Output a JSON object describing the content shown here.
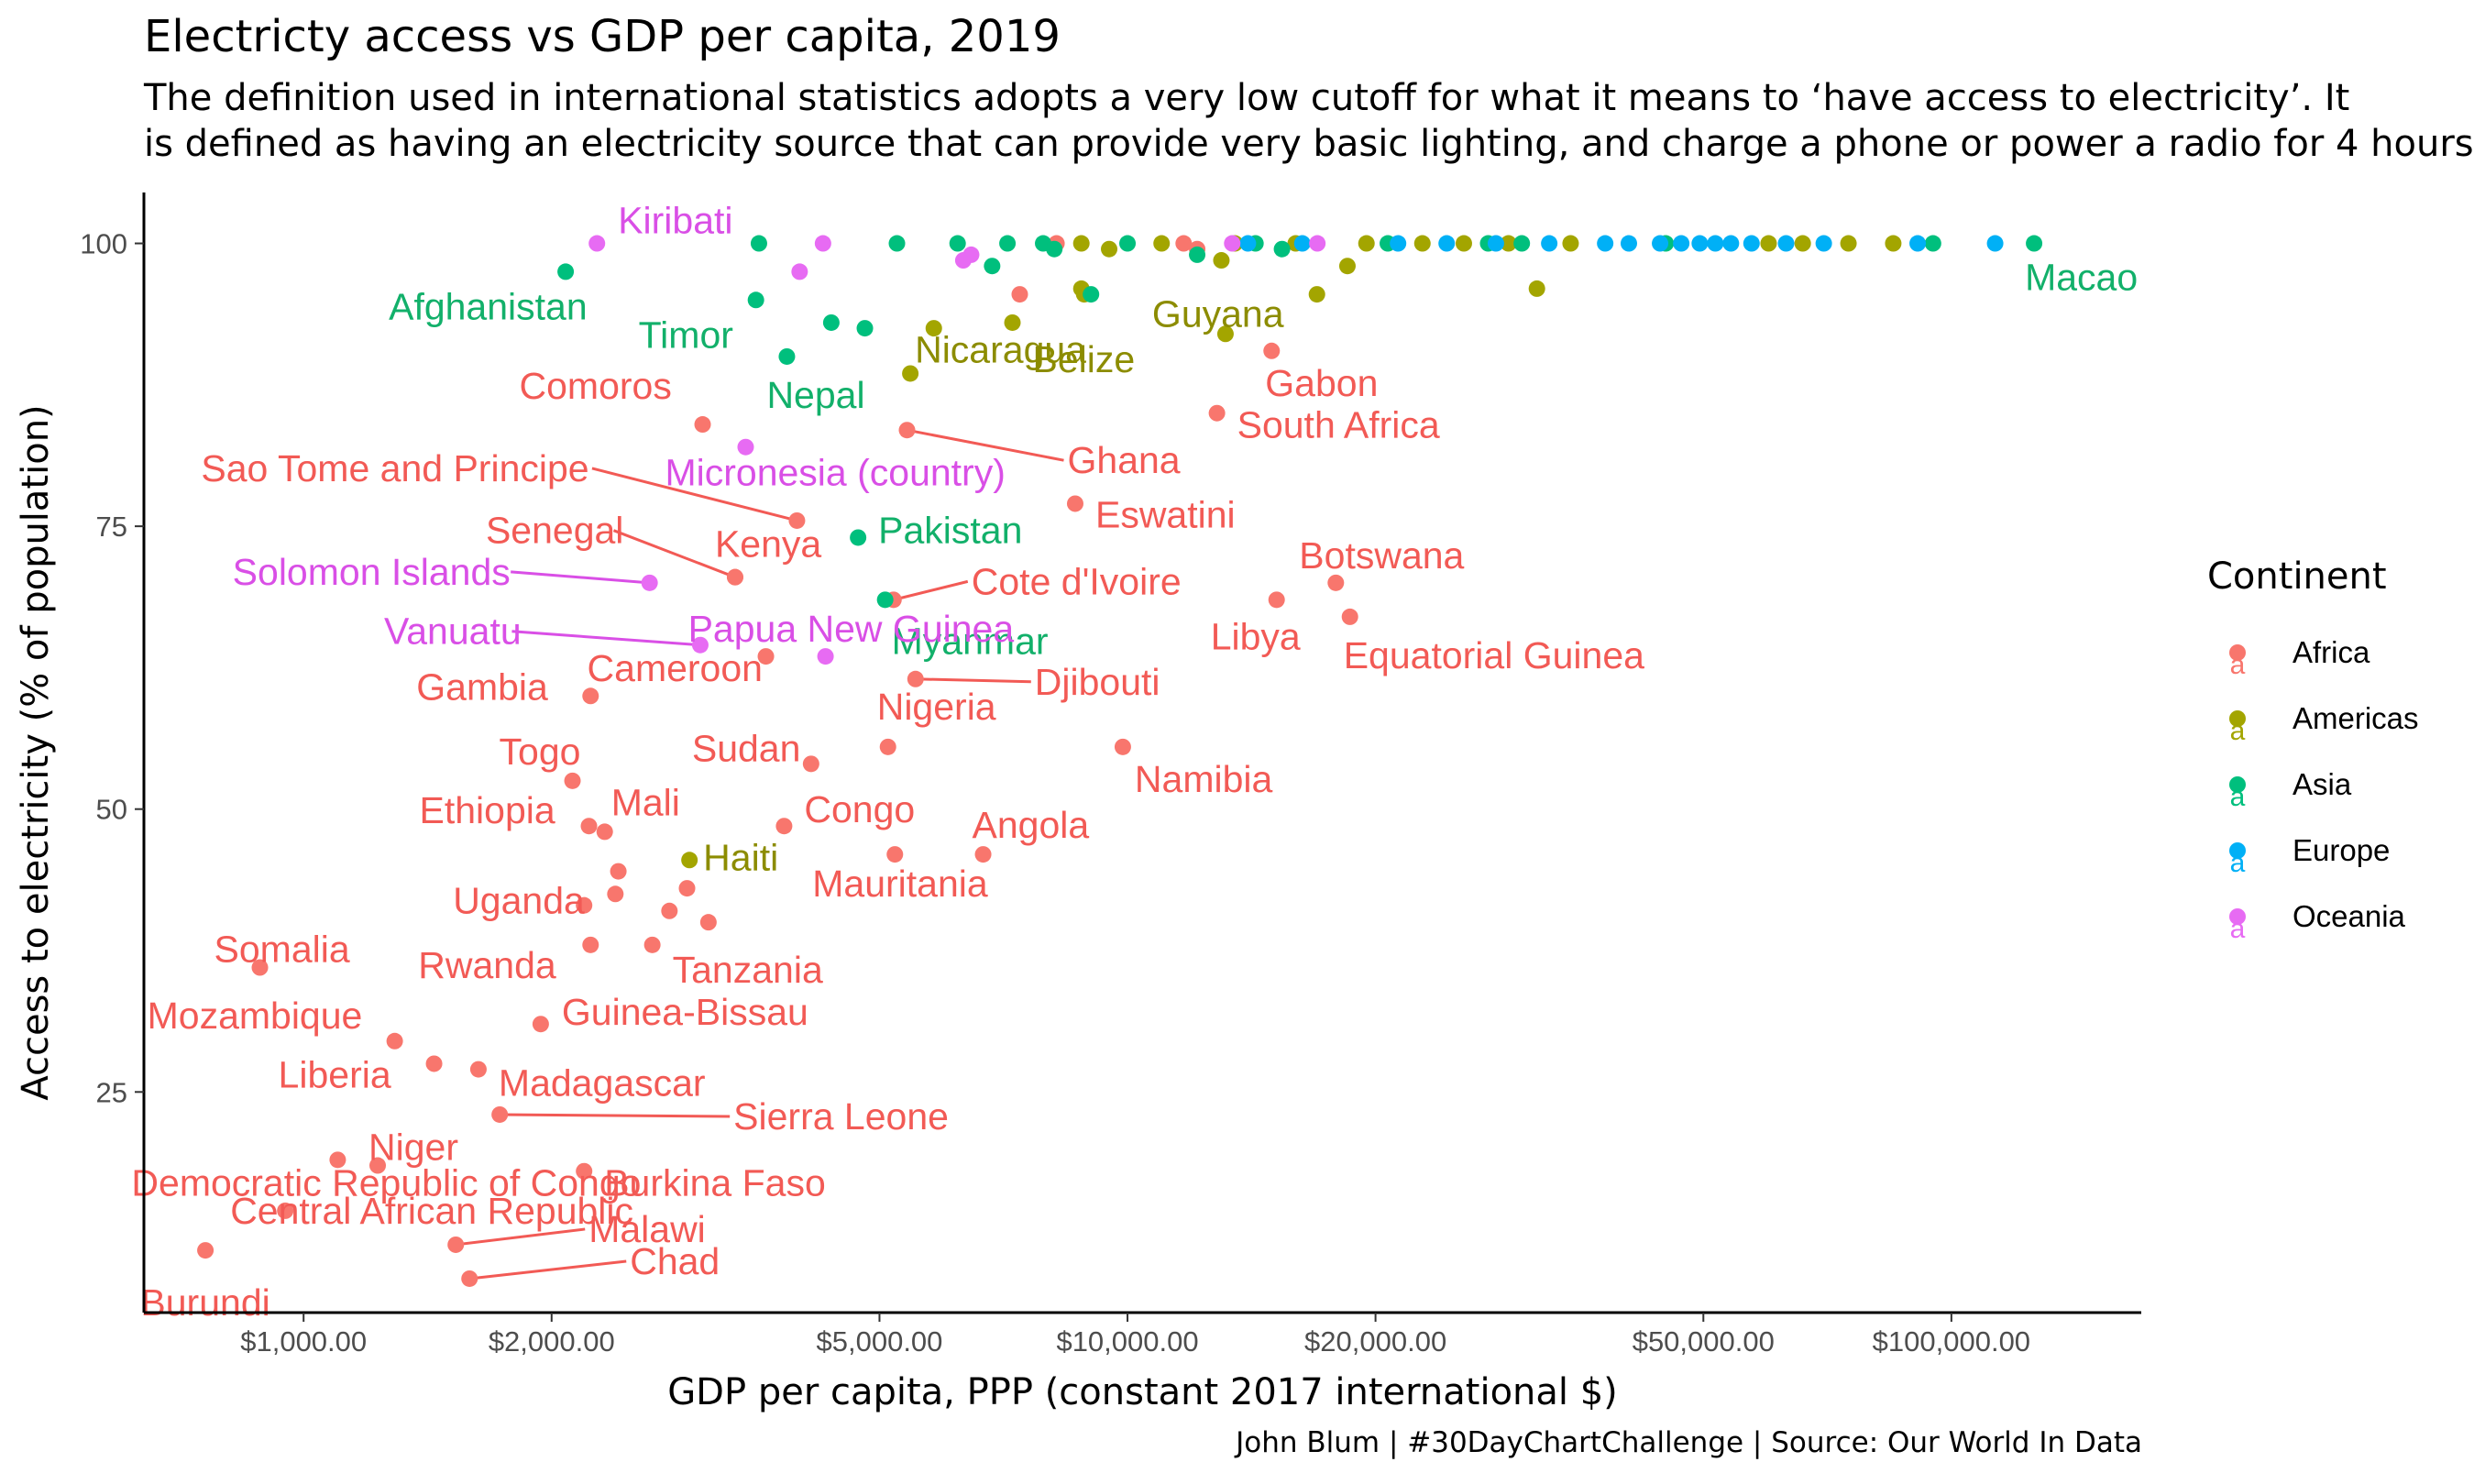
{
  "title": "Electricty access vs GDP per capita, 2019",
  "subtitle": [
    "The definition used in international statistics adopts a very low cutoff for what it means to  ‘have access to electricity’. It",
    "is defined as having an electricity source that can provide very basic lighting, and charge a phone or power a radio for 4 hours"
  ],
  "caption": "John Blum | #30DayChartChallenge | Source: Our World In Data",
  "colors": {
    "Africa": "#F8766D",
    "Americas": "#A3A500",
    "Asia": "#00BF7D",
    "Europe": "#00B0F6",
    "Oceania": "#E76BF3",
    "label_Africa": "#F25A55",
    "label_Americas": "#8C8C00",
    "label_Asia": "#12B06A",
    "label_Oceania": "#D94FE6"
  },
  "chart_data": {
    "type": "scatter",
    "title": "Electricty access vs GDP per capita, 2019",
    "xlabel": "GDP per capita, PPP (constant 2017 international $)",
    "ylabel": "Access to electricity (% of population)",
    "x_scale": "log10",
    "xlim": [
      640,
      170000
    ],
    "ylim": [
      5.5,
      104.5
    ],
    "x_ticks": [
      1000,
      2000,
      5000,
      10000,
      20000,
      50000,
      100000
    ],
    "x_tick_labels": [
      "$1,000.00",
      "$2,000.00",
      "$5,000.00",
      "$10,000.00",
      "$20,000.00",
      "$50,000.00",
      "$100,000.00"
    ],
    "y_ticks": [
      25,
      50,
      75,
      100
    ],
    "y_tick_labels": [
      "25",
      "50",
      "75",
      "100"
    ],
    "grid": false,
    "legend": {
      "title": "Continent",
      "position": "right",
      "glyph": "a",
      "entries": [
        "Africa",
        "Americas",
        "Asia",
        "Europe",
        "Oceania"
      ]
    },
    "labeled_points": [
      {
        "label": "Burundi",
        "continent": "Africa",
        "x": 760,
        "y": 11
      },
      {
        "label": "Somalia",
        "continent": "Africa",
        "x": 885,
        "y": 36
      },
      {
        "label": "Central African Republic",
        "continent": "Africa",
        "x": 950,
        "y": 14.5
      },
      {
        "label": "Democratic Republic of Congo",
        "continent": "Africa",
        "x": 1100,
        "y": 19
      },
      {
        "label": "Niger",
        "continent": "Africa",
        "x": 1230,
        "y": 18.5
      },
      {
        "label": "Mozambique",
        "continent": "Africa",
        "x": 1290,
        "y": 29.5
      },
      {
        "label": "Liberia",
        "continent": "Africa",
        "x": 1440,
        "y": 27.5
      },
      {
        "label": "Malawi",
        "continent": "Africa",
        "x": 1530,
        "y": 11.5
      },
      {
        "label": "Madagascar",
        "continent": "Africa",
        "x": 1630,
        "y": 27
      },
      {
        "label": "Chad",
        "continent": "Africa",
        "x": 1590,
        "y": 8.5
      },
      {
        "label": "Sierra Leone",
        "continent": "Africa",
        "x": 1730,
        "y": 23
      },
      {
        "label": "Guinea-Bissau",
        "continent": "Africa",
        "x": 1940,
        "y": 31
      },
      {
        "label": "Togo",
        "continent": "Africa",
        "x": 2120,
        "y": 52.5
      },
      {
        "label": "Burkina Faso",
        "continent": "Africa",
        "x": 2190,
        "y": 18
      },
      {
        "label": "Ethiopia",
        "continent": "Africa",
        "x": 2220,
        "y": 48.5
      },
      {
        "label": "Uganda",
        "continent": "Africa",
        "x": 2190,
        "y": 41.5
      },
      {
        "label": "Rwanda",
        "continent": "Africa",
        "x": 2230,
        "y": 38
      },
      {
        "label": "Gambia",
        "continent": "Africa",
        "x": 2230,
        "y": 60
      },
      {
        "label": "Mali",
        "continent": "Africa",
        "x": 2320,
        "y": 48
      },
      {
        "label": "Tanzania",
        "continent": "Africa",
        "x": 2650,
        "y": 38
      },
      {
        "label": "Cameroon",
        "continent": "Africa",
        "x": 3640,
        "y": 63.5
      },
      {
        "label": "Kenya",
        "continent": "Africa",
        "x": 3340,
        "y": 70.5
      },
      {
        "label": "Sao Tome and Principe",
        "continent": "Africa",
        "x": 3970,
        "y": 75.5
      },
      {
        "label": "Comoros",
        "continent": "Africa",
        "x": 3050,
        "y": 84
      },
      {
        "label": "Senegal",
        "continent": "Africa",
        "x": 3340,
        "y": 70.5
      },
      {
        "label": "Sudan",
        "continent": "Africa",
        "x": 4130,
        "y": 54
      },
      {
        "label": "Congo",
        "continent": "Africa",
        "x": 3830,
        "y": 48.5
      },
      {
        "label": "Mauritania",
        "continent": "Africa",
        "x": 5220,
        "y": 46
      },
      {
        "label": "Nigeria",
        "continent": "Africa",
        "x": 5120,
        "y": 55.5
      },
      {
        "label": "Cote d'Ivoire",
        "continent": "Africa",
        "x": 5200,
        "y": 68.5
      },
      {
        "label": "Ghana",
        "continent": "Africa",
        "x": 5400,
        "y": 83.5
      },
      {
        "label": "Djibouti",
        "continent": "Africa",
        "x": 5530,
        "y": 61.5
      },
      {
        "label": "Angola",
        "continent": "Africa",
        "x": 6680,
        "y": 46
      },
      {
        "label": "Eswatini",
        "continent": "Africa",
        "x": 8640,
        "y": 77
      },
      {
        "label": "Namibia",
        "continent": "Africa",
        "x": 9870,
        "y": 55.5
      },
      {
        "label": "South Africa",
        "continent": "Africa",
        "x": 12840,
        "y": 85
      },
      {
        "label": "Gabon",
        "continent": "Africa",
        "x": 14960,
        "y": 90.5
      },
      {
        "label": "Libya",
        "continent": "Africa",
        "x": 15170,
        "y": 68.5
      },
      {
        "label": "Botswana",
        "continent": "Africa",
        "x": 17900,
        "y": 70
      },
      {
        "label": "Equatorial Guinea",
        "continent": "Africa",
        "x": 18620,
        "y": 67
      },
      {
        "label": "Haiti",
        "continent": "Americas",
        "x": 2940,
        "y": 45.5
      },
      {
        "label": "Nicaragua",
        "continent": "Americas",
        "x": 5450,
        "y": 88.5
      },
      {
        "label": "Belize",
        "continent": "Americas",
        "x": 7250,
        "y": 93
      },
      {
        "label": "Guyana",
        "continent": "Americas",
        "x": 13150,
        "y": 92
      },
      {
        "label": "Afghanistan",
        "continent": "Asia",
        "x": 2080,
        "y": 97.5
      },
      {
        "label": "Timor",
        "continent": "Asia",
        "x": 3540,
        "y": 95
      },
      {
        "label": "Nepal",
        "continent": "Asia",
        "x": 3860,
        "y": 90
      },
      {
        "label": "Pakistan",
        "continent": "Asia",
        "x": 4710,
        "y": 74
      },
      {
        "label": "Myanmar",
        "continent": "Asia",
        "x": 5080,
        "y": 68.5
      },
      {
        "label": "Macao",
        "continent": "Asia",
        "x": 126000,
        "y": 100
      },
      {
        "label": "Kiribati",
        "continent": "Oceania",
        "x": 2270,
        "y": 100
      },
      {
        "label": "Micronesia (country)",
        "continent": "Oceania",
        "x": 3440,
        "y": 82
      },
      {
        "label": "Solomon Islands",
        "continent": "Oceania",
        "x": 2630,
        "y": 70
      },
      {
        "label": "Vanuatu",
        "continent": "Oceania",
        "x": 3030,
        "y": 64.5
      },
      {
        "label": "Papua New Guinea",
        "continent": "Oceania",
        "x": 4300,
        "y": 63.5
      }
    ],
    "unlabeled_points": [
      {
        "continent": "Africa",
        "x": 7400,
        "y": 95.5
      },
      {
        "continent": "Africa",
        "x": 8200,
        "y": 100
      },
      {
        "continent": "Africa",
        "x": 2780,
        "y": 41
      },
      {
        "continent": "Africa",
        "x": 3100,
        "y": 40
      },
      {
        "continent": "Africa",
        "x": 2920,
        "y": 43
      },
      {
        "continent": "Africa",
        "x": 2390,
        "y": 42.5
      },
      {
        "continent": "Africa",
        "x": 2410,
        "y": 44.5
      },
      {
        "continent": "Africa",
        "x": 11700,
        "y": 100
      },
      {
        "continent": "Africa",
        "x": 12150,
        "y": 99.5
      },
      {
        "continent": "Americas",
        "x": 5820,
        "y": 92.5
      },
      {
        "continent": "Americas",
        "x": 8790,
        "y": 96
      },
      {
        "continent": "Americas",
        "x": 8860,
        "y": 95.5
      },
      {
        "continent": "Americas",
        "x": 9500,
        "y": 99.5
      },
      {
        "continent": "Americas",
        "x": 13000,
        "y": 98.5
      },
      {
        "continent": "Americas",
        "x": 16980,
        "y": 95.5
      },
      {
        "continent": "Americas",
        "x": 18490,
        "y": 98
      },
      {
        "continent": "Americas",
        "x": 31400,
        "y": 96
      },
      {
        "continent": "Americas",
        "x": 8790,
        "y": 100
      },
      {
        "continent": "Americas",
        "x": 11000,
        "y": 100
      },
      {
        "continent": "Americas",
        "x": 13500,
        "y": 100
      },
      {
        "continent": "Americas",
        "x": 16000,
        "y": 100
      },
      {
        "continent": "Americas",
        "x": 19500,
        "y": 100
      },
      {
        "continent": "Americas",
        "x": 22800,
        "y": 100
      },
      {
        "continent": "Americas",
        "x": 25600,
        "y": 100
      },
      {
        "continent": "Americas",
        "x": 29000,
        "y": 100
      },
      {
        "continent": "Americas",
        "x": 34500,
        "y": 100
      },
      {
        "continent": "Americas",
        "x": 60000,
        "y": 100
      },
      {
        "continent": "Americas",
        "x": 66000,
        "y": 100
      },
      {
        "continent": "Americas",
        "x": 75000,
        "y": 100
      },
      {
        "continent": "Americas",
        "x": 85000,
        "y": 100
      },
      {
        "continent": "Asia",
        "x": 3570,
        "y": 100
      },
      {
        "continent": "Asia",
        "x": 4370,
        "y": 93
      },
      {
        "continent": "Asia",
        "x": 4800,
        "y": 92.5
      },
      {
        "continent": "Asia",
        "x": 5250,
        "y": 100
      },
      {
        "continent": "Asia",
        "x": 6220,
        "y": 100
      },
      {
        "continent": "Asia",
        "x": 6850,
        "y": 98
      },
      {
        "continent": "Asia",
        "x": 7150,
        "y": 100
      },
      {
        "continent": "Asia",
        "x": 7900,
        "y": 100
      },
      {
        "continent": "Asia",
        "x": 8150,
        "y": 99.5
      },
      {
        "continent": "Asia",
        "x": 9030,
        "y": 95.5
      },
      {
        "continent": "Asia",
        "x": 10000,
        "y": 100
      },
      {
        "continent": "Asia",
        "x": 12150,
        "y": 99
      },
      {
        "continent": "Asia",
        "x": 14300,
        "y": 100
      },
      {
        "continent": "Asia",
        "x": 15400,
        "y": 99.5
      },
      {
        "continent": "Asia",
        "x": 20700,
        "y": 100
      },
      {
        "continent": "Asia",
        "x": 27400,
        "y": 100
      },
      {
        "continent": "Asia",
        "x": 30100,
        "y": 100
      },
      {
        "continent": "Asia",
        "x": 45000,
        "y": 100
      },
      {
        "continent": "Asia",
        "x": 95000,
        "y": 100
      },
      {
        "continent": "Europe",
        "x": 14000,
        "y": 100
      },
      {
        "continent": "Europe",
        "x": 16300,
        "y": 100
      },
      {
        "continent": "Europe",
        "x": 21300,
        "y": 100
      },
      {
        "continent": "Europe",
        "x": 24400,
        "y": 100
      },
      {
        "continent": "Europe",
        "x": 28000,
        "y": 100
      },
      {
        "continent": "Europe",
        "x": 32500,
        "y": 100
      },
      {
        "continent": "Europe",
        "x": 38000,
        "y": 100
      },
      {
        "continent": "Europe",
        "x": 40600,
        "y": 100
      },
      {
        "continent": "Europe",
        "x": 44300,
        "y": 100
      },
      {
        "continent": "Europe",
        "x": 47000,
        "y": 100
      },
      {
        "continent": "Europe",
        "x": 49500,
        "y": 100
      },
      {
        "continent": "Europe",
        "x": 51700,
        "y": 100
      },
      {
        "continent": "Europe",
        "x": 54000,
        "y": 100
      },
      {
        "continent": "Europe",
        "x": 57200,
        "y": 100
      },
      {
        "continent": "Europe",
        "x": 63000,
        "y": 100
      },
      {
        "continent": "Europe",
        "x": 70000,
        "y": 100
      },
      {
        "continent": "Europe",
        "x": 91000,
        "y": 100
      },
      {
        "continent": "Europe",
        "x": 113000,
        "y": 100
      },
      {
        "continent": "Oceania",
        "x": 4000,
        "y": 97.5
      },
      {
        "continent": "Oceania",
        "x": 4270,
        "y": 100
      },
      {
        "continent": "Oceania",
        "x": 6320,
        "y": 98.5
      },
      {
        "continent": "Oceania",
        "x": 6460,
        "y": 99
      },
      {
        "continent": "Oceania",
        "x": 13400,
        "y": 100
      },
      {
        "continent": "Oceania",
        "x": 17000,
        "y": 100
      }
    ]
  }
}
